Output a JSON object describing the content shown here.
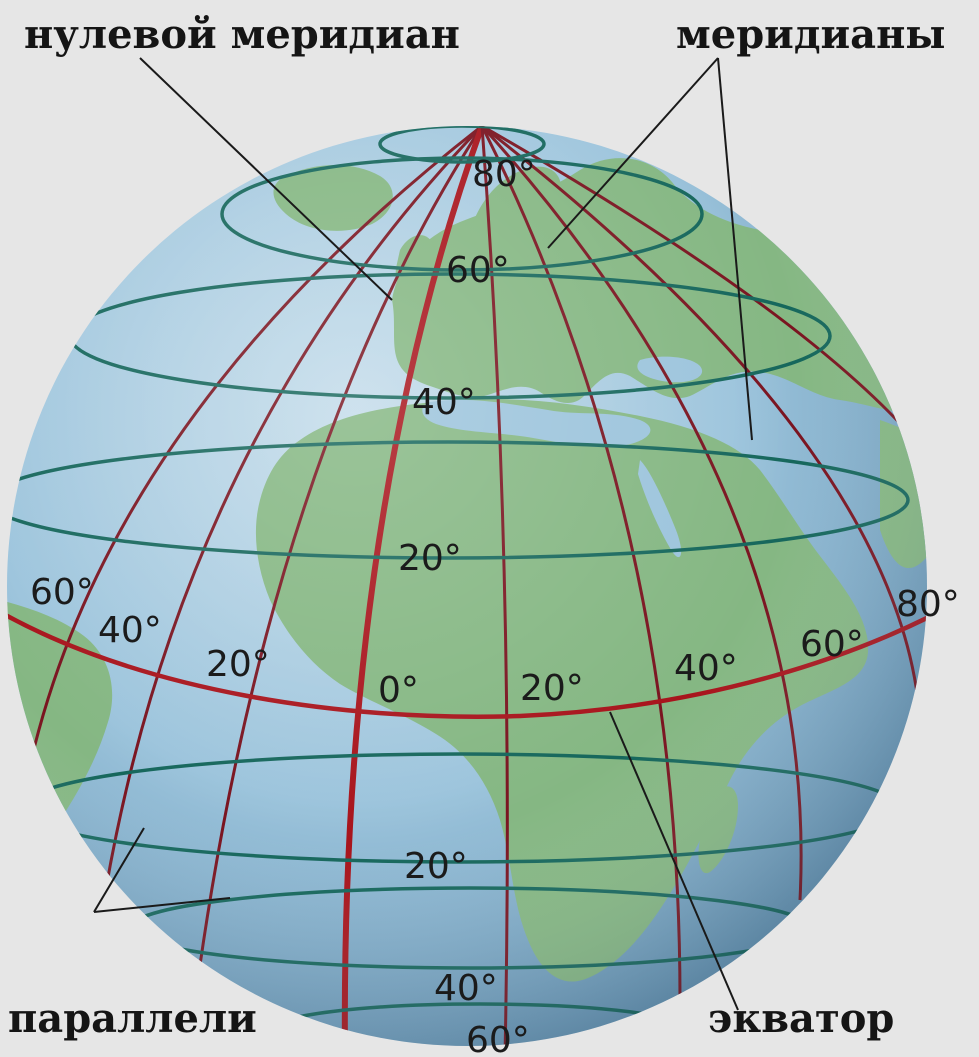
{
  "colors": {
    "background": "#e6e6e6",
    "ocean": "#9cc4dc",
    "ocean_edge": "#5f8fb0",
    "land": "#85b783",
    "meridian": "#7a1420",
    "prime_meridian": "#a8141c",
    "equator": "#a8141c",
    "parallel": "#16675c"
  },
  "callouts": {
    "prime_meridian": "нулевой меридиан",
    "meridians": "меридианы",
    "parallels": "параллели",
    "equator": "экватор"
  },
  "latitude_labels": {
    "n80": "80°",
    "n60": "60°",
    "n40": "40°",
    "n20": "20°",
    "s20": "20°",
    "s40": "40°",
    "s60": "60°"
  },
  "longitude_labels": {
    "w60": "60°",
    "w40": "40°",
    "w20": "20°",
    "zero": "0°",
    "e20": "20°",
    "e40": "40°",
    "e60": "60°",
    "e80": "80°"
  }
}
